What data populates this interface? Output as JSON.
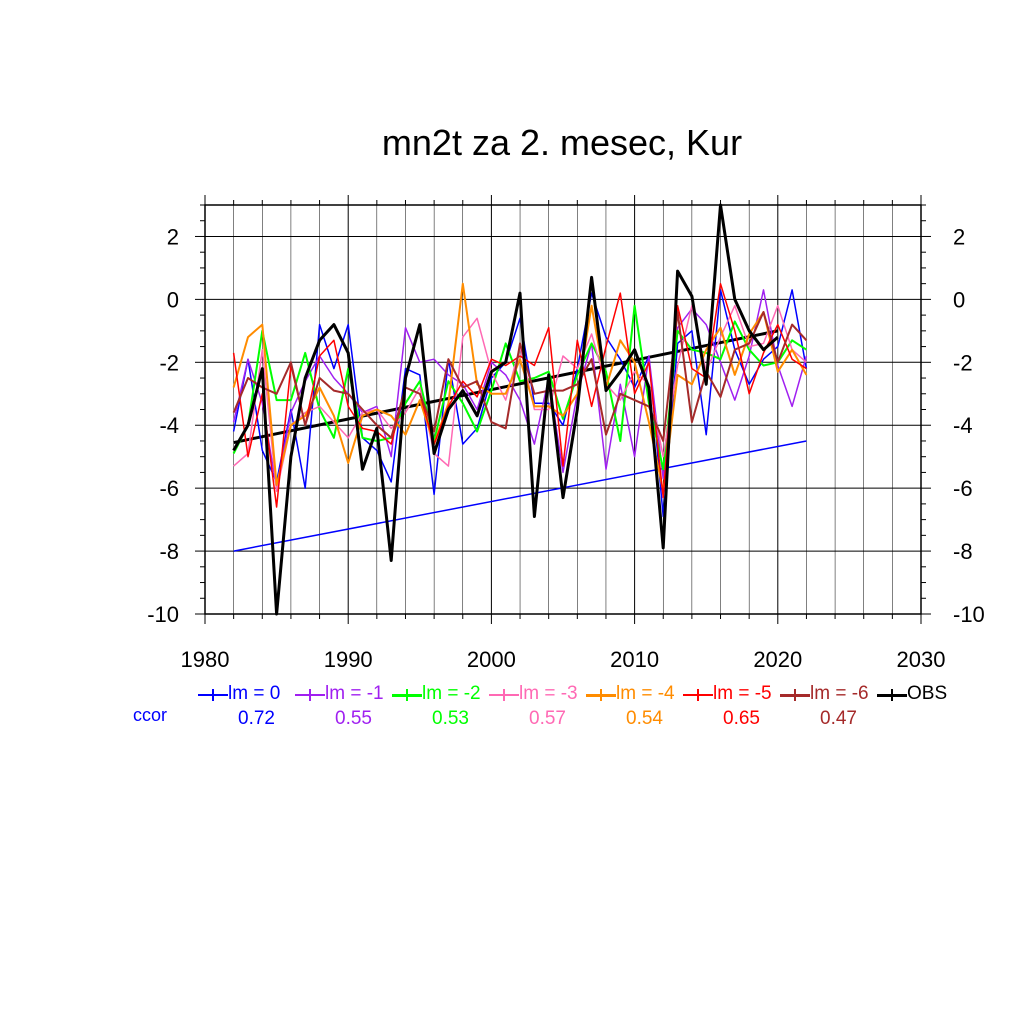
{
  "chart_data": {
    "type": "line",
    "title": "mn2t za 2. mesec, Kur",
    "xlabel": "",
    "ylabel": "",
    "xlim": [
      1980,
      2030
    ],
    "ylim": [
      -10,
      3
    ],
    "xticks": [
      1980,
      1990,
      2000,
      2010,
      2020,
      2030
    ],
    "yticks": [
      2,
      0,
      -2,
      -4,
      -6,
      -8,
      -10
    ],
    "grid": true,
    "x": [
      1982,
      1983,
      1984,
      1985,
      1986,
      1987,
      1988,
      1989,
      1990,
      1991,
      1992,
      1993,
      1994,
      1995,
      1996,
      1997,
      1998,
      1999,
      2000,
      2001,
      2002,
      2003,
      2004,
      2005,
      2006,
      2007,
      2008,
      2009,
      2010,
      2011,
      2012,
      2013,
      2014,
      2015,
      2016,
      2017,
      2018,
      2019,
      2020,
      2021,
      2022
    ],
    "series": [
      {
        "name": "lm = 0",
        "color": "#0000ff",
        "ccor": "0.72",
        "width": 1.5,
        "values": [
          -4.2,
          -1.9,
          -4.8,
          -5.8,
          -3.5,
          -6.0,
          -0.8,
          -2.2,
          -0.8,
          -4.4,
          -4.8,
          -5.8,
          -2.2,
          -2.4,
          -6.2,
          -1.9,
          -4.6,
          -4.1,
          -2.5,
          -2.0,
          -0.6,
          -3.3,
          -3.3,
          -4.0,
          -2.2,
          0.2,
          -1.2,
          -1.9,
          -2.8,
          -1.8,
          -6.9,
          -1.4,
          -1.0,
          -4.3,
          0.3,
          -1.6,
          -2.7,
          -1.9,
          -1.5,
          0.3,
          -2.2
        ]
      },
      {
        "name": "lm = -1",
        "color": "#a020f0",
        "ccor": "0.55",
        "width": 1.5,
        "values": [
          -3.9,
          -1.9,
          -3.3,
          -6.0,
          -3.6,
          -2.6,
          -1.8,
          -2.5,
          -3.0,
          -3.6,
          -3.4,
          -5.0,
          -0.9,
          -2.0,
          -1.9,
          -2.4,
          -2.7,
          -3.5,
          -2.0,
          -2.4,
          -3.2,
          -4.6,
          -2.5,
          -5.5,
          -3.0,
          -1.4,
          -5.4,
          -2.7,
          -5.0,
          -1.8,
          -5.7,
          -0.9,
          -0.3,
          -0.8,
          -2.0,
          -3.2,
          -1.8,
          0.3,
          -2.1,
          -3.4,
          -1.8
        ]
      },
      {
        "name": "lm = -2",
        "color": "#00ff00",
        "ccor": "0.53",
        "width": 2.0,
        "values": [
          -4.9,
          -4.0,
          -1.0,
          -3.2,
          -3.2,
          -1.7,
          -3.5,
          -4.4,
          -2.2,
          -4.4,
          -4.5,
          -4.4,
          -3.3,
          -2.6,
          -4.5,
          -2.6,
          -3.3,
          -4.2,
          -2.9,
          -1.4,
          -2.6,
          -2.5,
          -2.3,
          -3.8,
          -2.4,
          -1.4,
          -2.3,
          -4.5,
          -0.2,
          -3.3,
          -5.4,
          -1.0,
          -1.6,
          -1.7,
          -1.9,
          -0.7,
          -1.6,
          -2.1,
          -2.0,
          -1.3,
          -1.6
        ]
      },
      {
        "name": "lm = -3",
        "color": "#ff69b4",
        "ccor": "0.57",
        "width": 1.5,
        "values": [
          -5.3,
          -4.9,
          -1.6,
          -6.1,
          -4.0,
          -3.6,
          -3.4,
          -3.9,
          -4.4,
          -3.6,
          -3.5,
          -4.1,
          -3.6,
          -2.8,
          -4.9,
          -5.3,
          -1.2,
          -0.6,
          -2.3,
          -3.2,
          -1.5,
          -3.5,
          -3.5,
          -1.8,
          -2.2,
          -1.1,
          -2.7,
          -3.2,
          -2.3,
          -2.7,
          -5.0,
          -2.1,
          -0.2,
          -2.3,
          -1.2,
          -0.2,
          -1.5,
          -1.4,
          -0.2,
          -1.6,
          -2.0
        ]
      },
      {
        "name": "lm = -4",
        "color": "#ff8c00",
        "ccor": "0.54",
        "width": 2.0,
        "values": [
          -2.8,
          -1.2,
          -0.8,
          -5.9,
          -4.0,
          -3.7,
          -2.8,
          -3.7,
          -5.2,
          -3.7,
          -3.5,
          -3.7,
          -4.3,
          -3.2,
          -4.6,
          -3.3,
          0.5,
          -2.7,
          -3.0,
          -3.0,
          -1.9,
          -3.4,
          -3.4,
          -3.7,
          -3.0,
          -0.2,
          -2.8,
          -1.3,
          -2.0,
          -3.9,
          -6.1,
          -2.4,
          -2.7,
          -1.6,
          -0.9,
          -2.4,
          -1.1,
          -0.4,
          -2.3,
          -1.6,
          -2.4
        ]
      },
      {
        "name": "lm = -5",
        "color": "#ff0000",
        "ccor": "0.65",
        "width": 1.5,
        "values": [
          -1.7,
          -5.0,
          -3.0,
          -6.6,
          -2.1,
          -4.0,
          -1.8,
          -1.3,
          -3.4,
          -4.1,
          -4.2,
          -4.6,
          -2.8,
          -3.0,
          -4.6,
          -3.4,
          -2.6,
          -3.1,
          -1.9,
          -2.1,
          -1.8,
          -2.1,
          -0.9,
          -5.3,
          -1.3,
          -3.4,
          -1.5,
          0.2,
          -3.0,
          -2.0,
          -6.3,
          -0.2,
          -2.2,
          -2.5,
          0.5,
          -1.0,
          -3.0,
          -1.7,
          -0.8,
          -1.9,
          -2.2
        ]
      },
      {
        "name": "lm = -6",
        "color": "#a52a2a",
        "ccor": "0.47",
        "width": 2.0,
        "values": [
          -3.6,
          -2.5,
          -2.8,
          -3.0,
          -2.0,
          -4.0,
          -2.5,
          -2.9,
          -3.0,
          -3.5,
          -4.0,
          -4.4,
          -2.8,
          -3.0,
          -4.2,
          -1.9,
          -2.8,
          -2.6,
          -3.9,
          -4.1,
          -1.4,
          -3.0,
          -2.9,
          -2.9,
          -2.7,
          -1.9,
          -4.3,
          -3.0,
          -3.2,
          -3.4,
          -4.5,
          -0.4,
          -3.9,
          -2.3,
          -3.1,
          -1.6,
          -1.4,
          -0.4,
          -2.0,
          -0.8,
          -1.3
        ]
      },
      {
        "name": "OBS",
        "color": "#000000",
        "ccor": "",
        "width": 3.0,
        "values": [
          -4.8,
          -4.0,
          -2.2,
          -10.0,
          -5.0,
          -2.5,
          -1.3,
          -0.8,
          -1.7,
          -5.4,
          -4.1,
          -8.3,
          -2.5,
          -0.8,
          -4.9,
          -3.5,
          -2.9,
          -3.7,
          -2.3,
          -2.0,
          0.2,
          -6.9,
          -2.4,
          -6.3,
          -3.5,
          0.7,
          -2.9,
          -2.3,
          -1.6,
          -2.8,
          -7.9,
          0.9,
          0.1,
          -2.7,
          3.0,
          0.0,
          -1.0,
          -1.6,
          -1.2,
          null,
          null
        ]
      }
    ],
    "trend_lines": [
      {
        "color": "#000000",
        "x": [
          1982,
          2020
        ],
        "y": [
          -4.55,
          -1.0
        ],
        "width": 3.0
      },
      {
        "color": "#0000ff",
        "x": [
          1982,
          2022
        ],
        "y": [
          -8.0,
          -4.5
        ],
        "width": 1.5
      }
    ],
    "ccor_label": "ccor"
  }
}
